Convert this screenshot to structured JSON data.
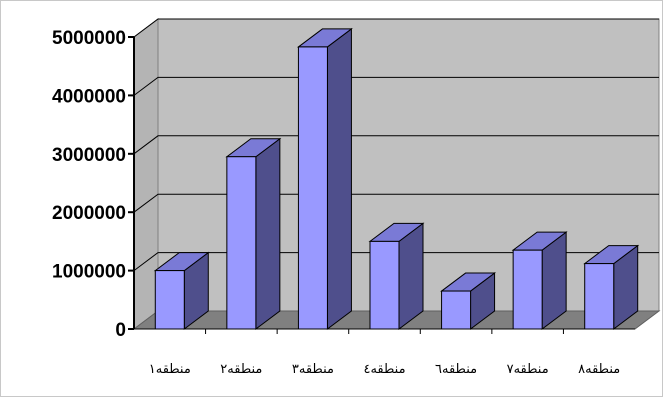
{
  "chart_data": {
    "type": "bar",
    "style": "3d-column",
    "categories": [
      "منطقه۱",
      "منطقه۲",
      "منطقه۳",
      "منطقه٤",
      "منطقه٦",
      "منطقه۷",
      "منطقه۸"
    ],
    "values": [
      1000000,
      2950000,
      4830000,
      1500000,
      650000,
      1350000,
      1120000
    ],
    "ylim": [
      0,
      5000000
    ],
    "yticks": [
      0,
      1000000,
      2000000,
      3000000,
      4000000,
      5000000
    ],
    "grid": true,
    "legend": "none",
    "colors": {
      "bar_front": "#9999ff",
      "bar_side": "#4f4f8c",
      "bar_top": "#7a7ad6",
      "wall": "#c0c0c0",
      "floor": "#808080",
      "gridline": "#000000"
    }
  }
}
